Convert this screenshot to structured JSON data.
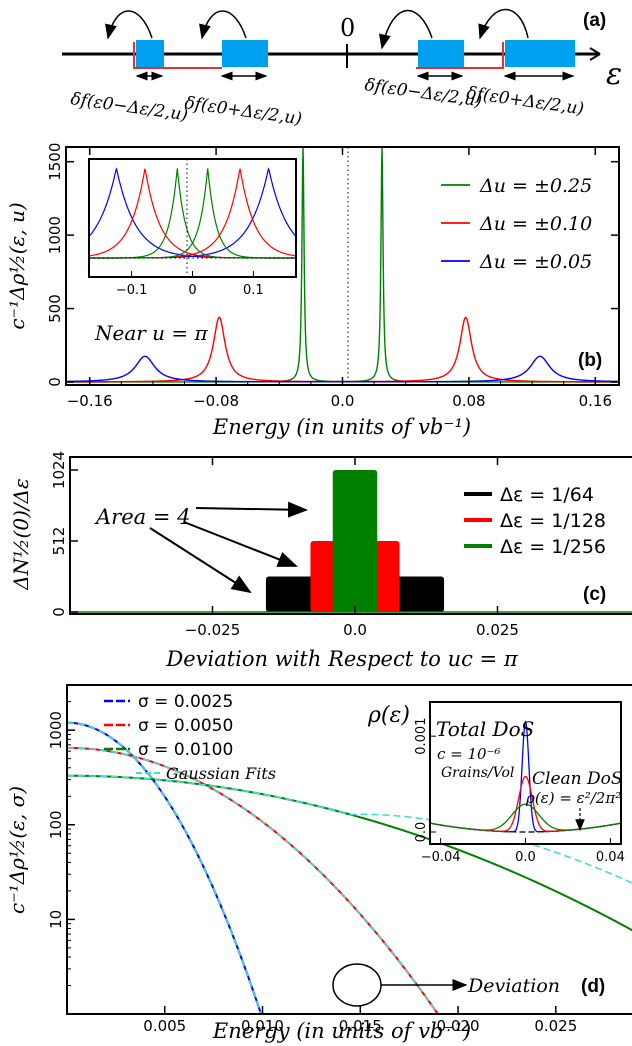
{
  "panel_a": {
    "label": "(a)",
    "zero_label": "0",
    "axis_symbol": "ε",
    "labels": [
      "δf(ε0−Δε/2,u)",
      "δf(ε0+Δε/2,u)",
      "δf(ε0−Δε/2,u)",
      "δf(ε0+Δε/2,u)"
    ]
  },
  "chart_data": [
    {
      "id": "b",
      "type": "line",
      "panel_label": "(b)",
      "xlabel": "Energy (in units of vb⁻¹)",
      "ylabel": "c⁻¹Δρ½(ε, u)",
      "xlim": [
        -0.175,
        0.175
      ],
      "ylim": [
        0,
        1600
      ],
      "xticks": [
        -0.16,
        -0.08,
        0.0,
        0.08,
        0.16
      ],
      "xtick_labels": [
        "−0.16",
        "−0.08",
        "0.0",
        "0.08",
        "0.16"
      ],
      "yticks": [
        0,
        500,
        1000,
        1500
      ],
      "ytick_labels": [
        "0",
        "500",
        "1000",
        "1500"
      ],
      "annotation": "Near u = π",
      "legend_position": "top-right",
      "series": [
        {
          "name": "Δu = ±0.25",
          "color": "#008000",
          "peak_positions": [
            -0.025,
            0.025
          ],
          "peak_height": 1600,
          "width": 0.0008
        },
        {
          "name": "Δu = ±0.10",
          "color": "#ff0000",
          "peak_positions": [
            -0.078,
            0.078
          ],
          "peak_height": 440,
          "width": 0.0045
        },
        {
          "name": "Δu = ±0.05",
          "color": "#0000ff",
          "peak_positions": [
            -0.125,
            0.125
          ],
          "peak_height": 175,
          "width": 0.0075
        }
      ],
      "inset": {
        "xlim": [
          -0.17,
          0.17
        ],
        "xticks": [
          -0.1,
          0.0,
          0.1
        ],
        "xtick_labels": [
          "−0.1",
          "0",
          "0.1"
        ]
      }
    },
    {
      "id": "c",
      "type": "bar",
      "panel_label": "(c)",
      "xlabel": "Deviation with Respect to uc = π",
      "ylabel": "ΔN½(0)/Δε",
      "xlim": [
        -0.05,
        0.05
      ],
      "ylim": [
        0,
        1024
      ],
      "xticks": [
        -0.025,
        0.0,
        0.025
      ],
      "xtick_labels": [
        "−0.025",
        "0.0",
        "0.025"
      ],
      "yticks": [
        0,
        512,
        1024
      ],
      "ytick_labels": [
        "0",
        "512",
        "1024"
      ],
      "annotation": "Area = 4",
      "legend_position": "top-right",
      "series": [
        {
          "name": "Δε = 1/64",
          "color": "#000000",
          "halfwidth": 0.015625,
          "value": 256
        },
        {
          "name": "Δε = 1/128",
          "color": "#ff0000",
          "halfwidth": 0.0078125,
          "value": 512
        },
        {
          "name": "Δε = 1/256",
          "color": "#008000",
          "halfwidth": 0.00390625,
          "value": 1024
        }
      ]
    },
    {
      "id": "d",
      "type": "line",
      "panel_label": "(d)",
      "xlabel": "Energy (in units of vb⁻¹)",
      "ylabel": "c⁻¹Δρ½(ε, σ)",
      "xlim": [
        0,
        0.029
      ],
      "ylim": [
        1,
        3000
      ],
      "yscale": "log",
      "xticks": [
        0.005,
        0.01,
        0.015,
        0.02,
        0.025
      ],
      "xtick_labels": [
        "0.005",
        "0.010",
        "0.015",
        "0.020",
        "0.025"
      ],
      "yticks": [
        10,
        100,
        1000
      ],
      "ytick_labels": [
        "10",
        "100",
        "1000"
      ],
      "annotation": "Deviation",
      "legend_position": "top-left",
      "fit_label": "Gaussian Fits",
      "series": [
        {
          "name": "σ = 0.0025",
          "color": "#0000ff",
          "sigma": 0.0025
        },
        {
          "name": "σ = 0.0050",
          "color": "#ff0000",
          "sigma": 0.005
        },
        {
          "name": "σ = 0.0100",
          "color": "#008000",
          "sigma": 0.01
        }
      ],
      "inset": {
        "title": "Total DoS",
        "ylabel": "ρ(ε)",
        "conc_label": "c = 10⁻⁶",
        "conc_unit": "Grains/Vol",
        "clean_label": "Clean DoS",
        "clean_formula": "ρ(ε) = ε²/2π²",
        "xlim": [
          -0.045,
          0.045
        ],
        "xticks": [
          -0.04,
          0.0,
          0.04
        ],
        "xtick_labels": [
          "−0.04",
          "0.0",
          "0.04"
        ],
        "yticks": [
          0.0,
          0.001
        ],
        "ytick_labels": [
          "0.0",
          "0.001"
        ]
      }
    }
  ]
}
